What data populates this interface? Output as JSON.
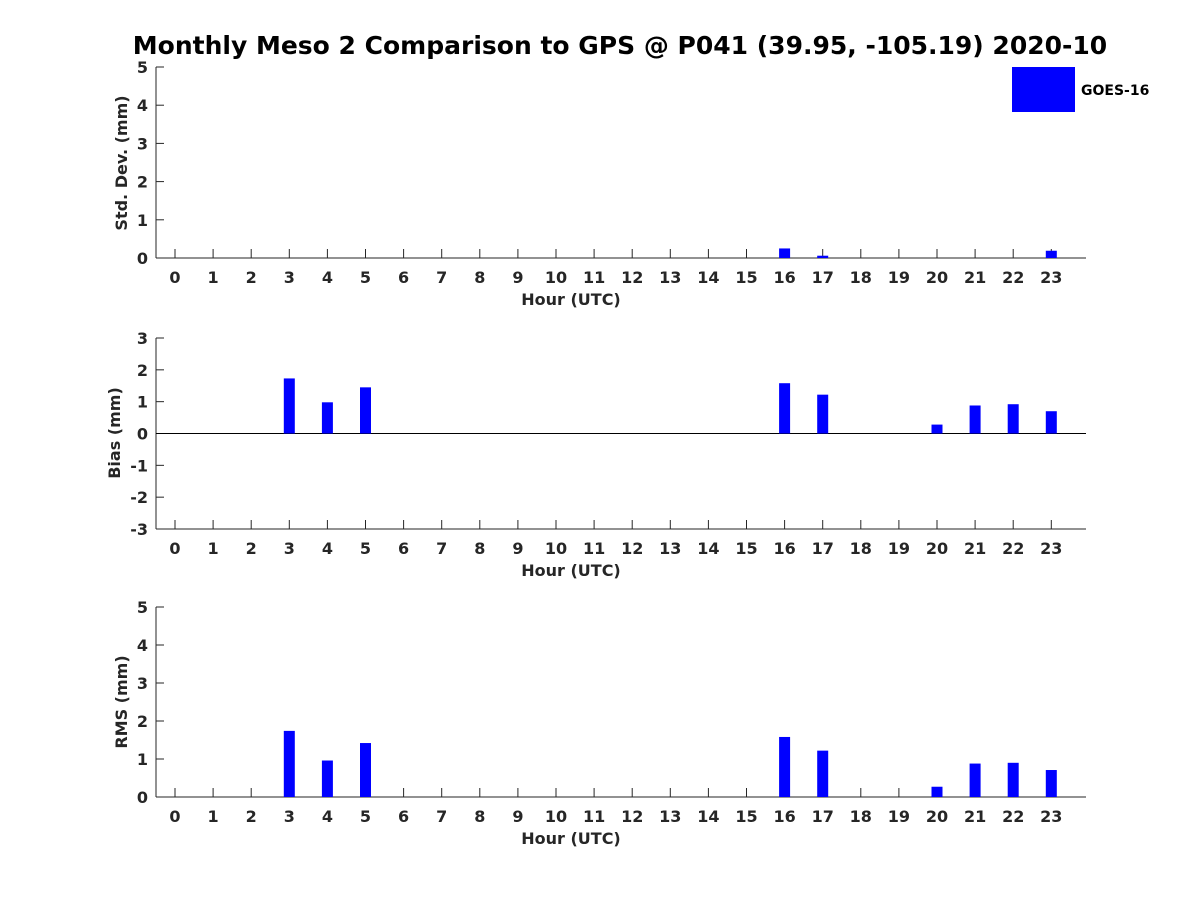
{
  "title": "Monthly Meso 2 Comparison to GPS @ P041 (39.95, -105.19) 2020-10",
  "legend": {
    "label": "GOES-16",
    "color": "#0000ff"
  },
  "colors": {
    "bar": "#0000ff",
    "axis": "#262626"
  },
  "chart_data": [
    {
      "type": "bar",
      "categories": [
        "0",
        "1",
        "2",
        "3",
        "4",
        "5",
        "6",
        "7",
        "8",
        "9",
        "10",
        "11",
        "12",
        "13",
        "14",
        "15",
        "16",
        "17",
        "18",
        "19",
        "20",
        "21",
        "22",
        "23"
      ],
      "values": [
        null,
        null,
        null,
        null,
        null,
        null,
        null,
        null,
        null,
        null,
        null,
        null,
        null,
        null,
        null,
        null,
        0.25,
        0.06,
        null,
        null,
        null,
        null,
        null,
        0.19
      ],
      "series": [
        {
          "name": "GOES-16"
        }
      ],
      "xlabel": "Hour (UTC)",
      "ylabel": "Std. Dev. (mm)",
      "ylim": [
        0,
        5
      ],
      "yticks": [
        "5",
        "4",
        "3",
        "2",
        "1",
        "0"
      ],
      "legend_position": "top-right"
    },
    {
      "type": "bar",
      "categories": [
        "0",
        "1",
        "2",
        "3",
        "4",
        "5",
        "6",
        "7",
        "8",
        "9",
        "10",
        "11",
        "12",
        "13",
        "14",
        "15",
        "16",
        "17",
        "18",
        "19",
        "20",
        "21",
        "22",
        "23"
      ],
      "values": [
        null,
        null,
        null,
        1.73,
        0.98,
        1.45,
        null,
        null,
        null,
        null,
        null,
        null,
        null,
        null,
        null,
        null,
        1.58,
        1.22,
        null,
        null,
        0.28,
        0.88,
        0.92,
        0.7
      ],
      "series": [
        {
          "name": "GOES-16"
        }
      ],
      "xlabel": "Hour (UTC)",
      "ylabel": "Bias (mm)",
      "ylim": [
        -3,
        3
      ],
      "yticks": [
        "3",
        "2",
        "1",
        "0",
        "-1",
        "-2",
        "-3"
      ],
      "zero_line": true
    },
    {
      "type": "bar",
      "categories": [
        "0",
        "1",
        "2",
        "3",
        "4",
        "5",
        "6",
        "7",
        "8",
        "9",
        "10",
        "11",
        "12",
        "13",
        "14",
        "15",
        "16",
        "17",
        "18",
        "19",
        "20",
        "21",
        "22",
        "23"
      ],
      "values": [
        null,
        null,
        null,
        1.74,
        0.96,
        1.42,
        null,
        null,
        null,
        null,
        null,
        null,
        null,
        null,
        null,
        null,
        1.58,
        1.22,
        null,
        null,
        0.27,
        0.88,
        0.9,
        0.71
      ],
      "series": [
        {
          "name": "GOES-16"
        }
      ],
      "xlabel": "Hour (UTC)",
      "ylabel": "RMS (mm)",
      "ylim": [
        0,
        5
      ],
      "yticks": [
        "5",
        "4",
        "3",
        "2",
        "1",
        "0"
      ]
    }
  ]
}
